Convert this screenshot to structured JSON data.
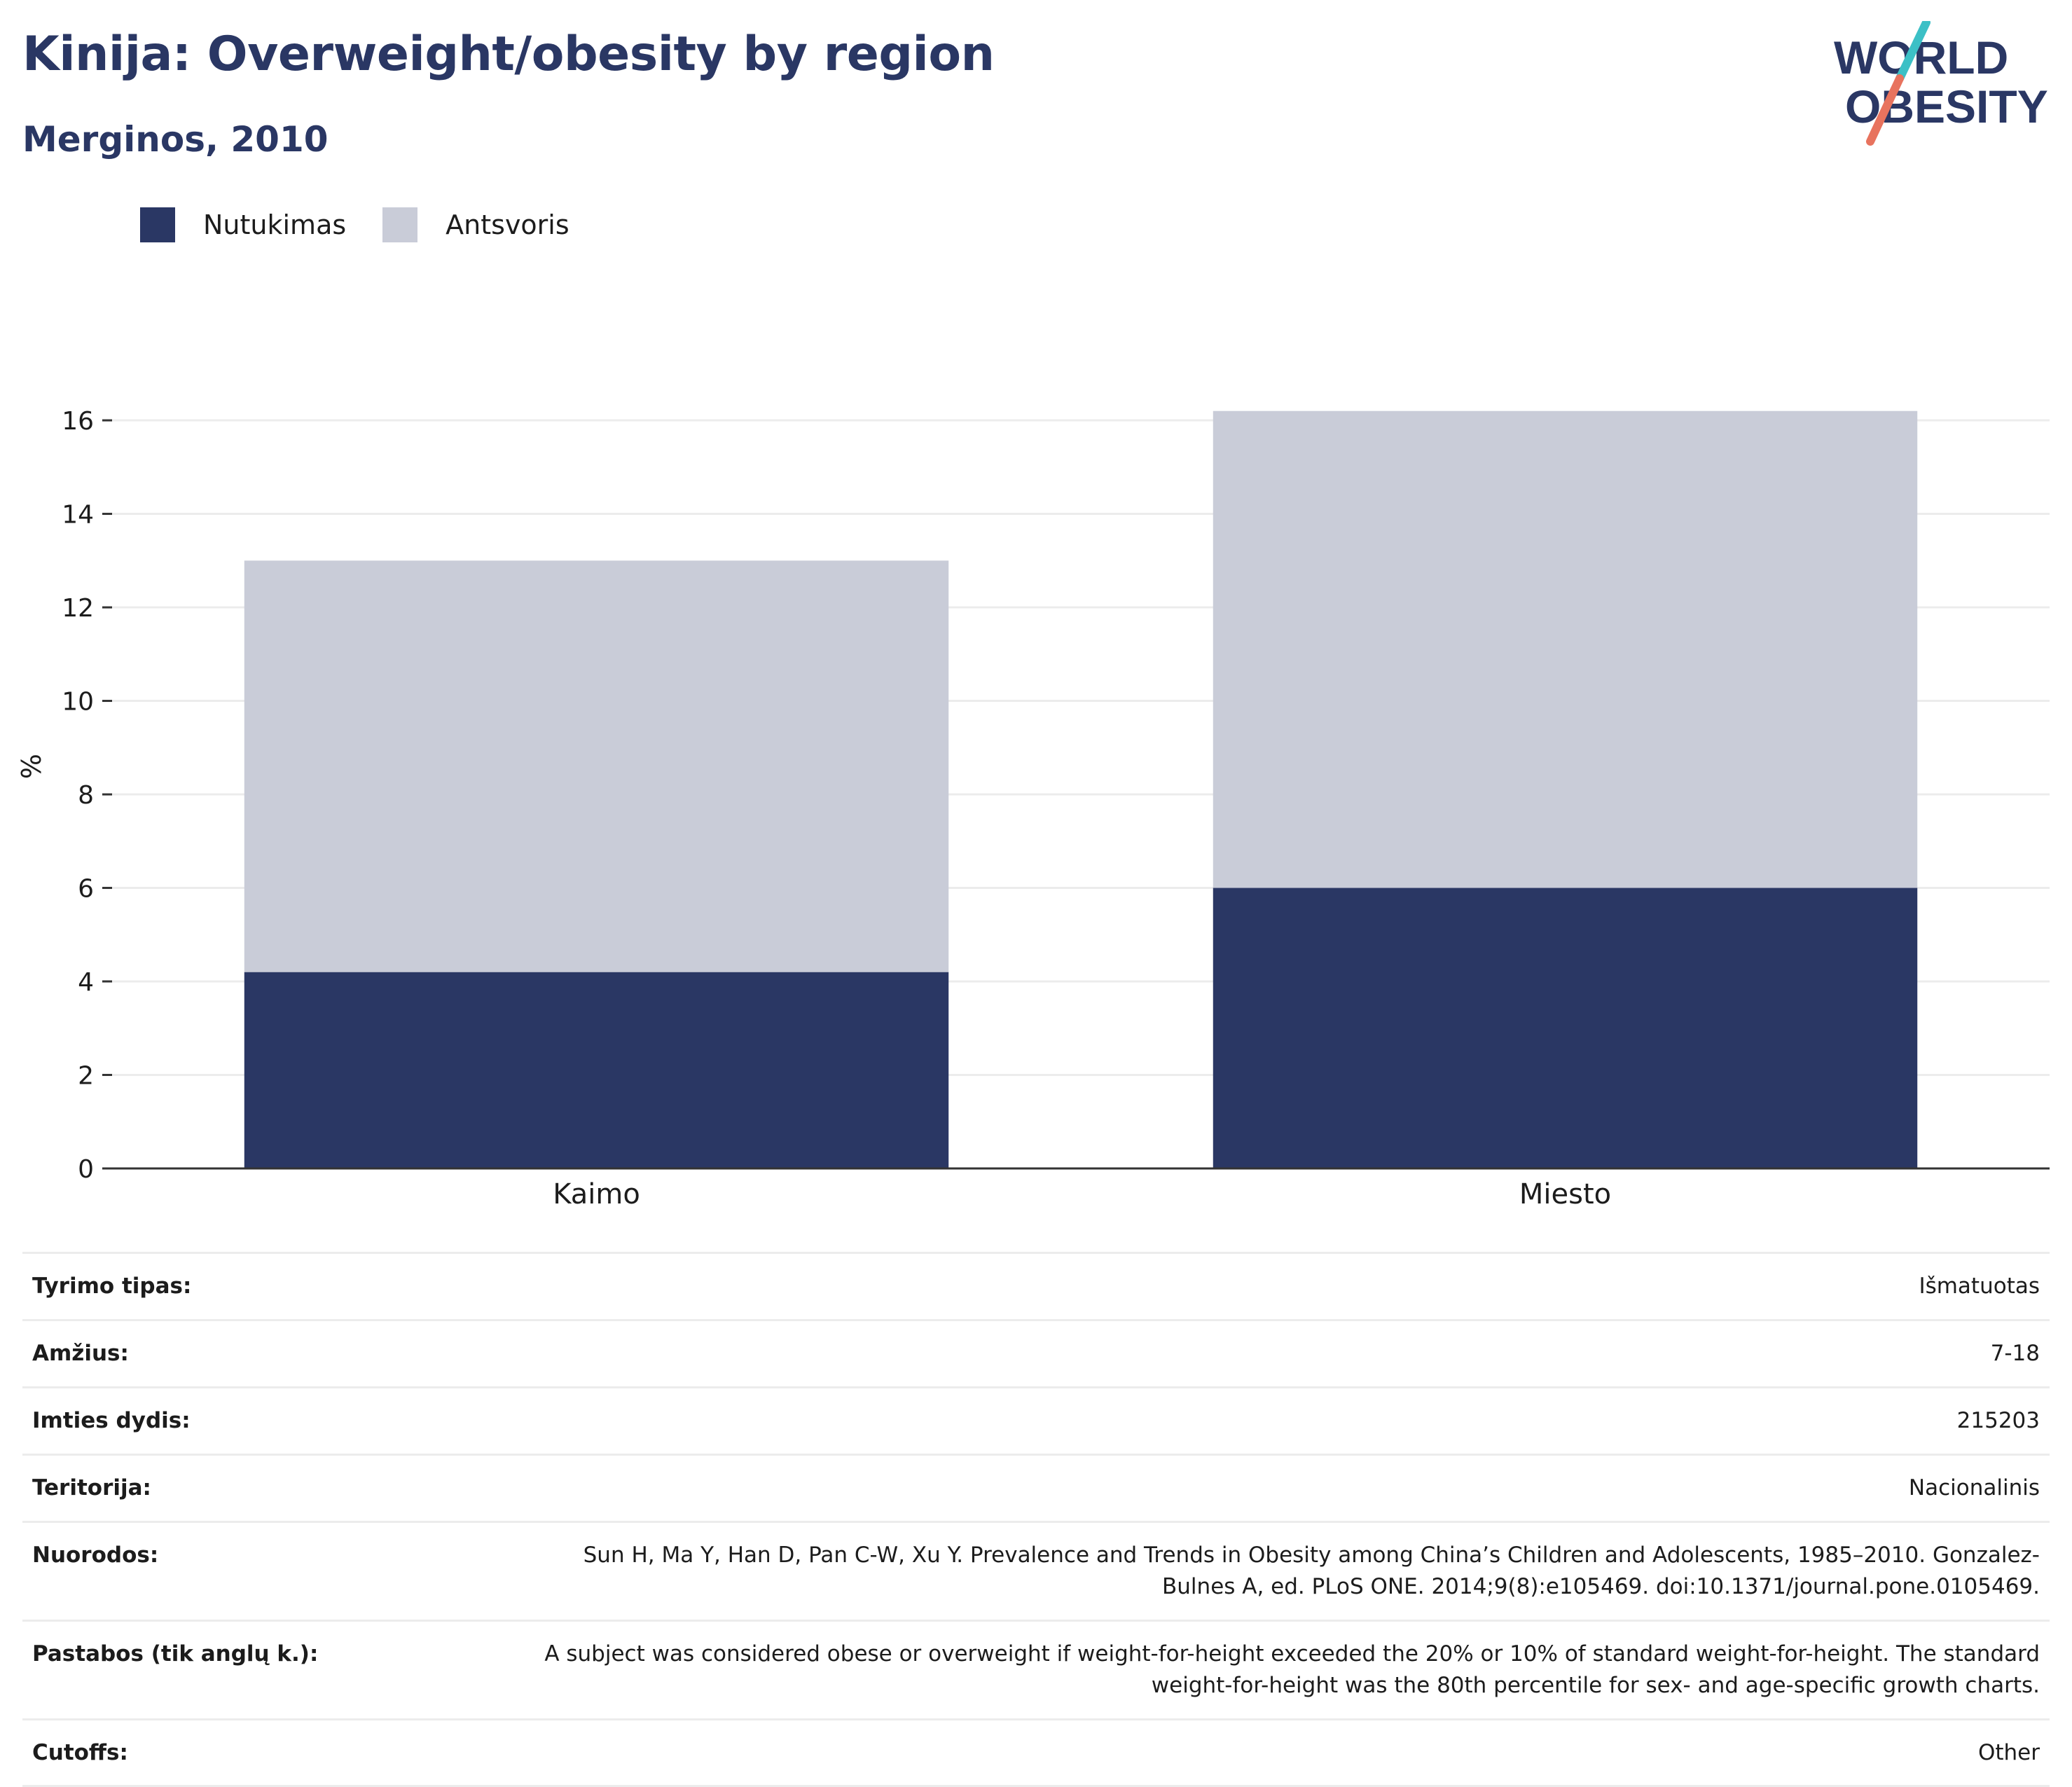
{
  "header": {
    "title": "Kinija: Overweight/obesity by region",
    "subtitle": "Merginos, 2010"
  },
  "logo": {
    "line1": "WORLD",
    "line2": "OBESITY",
    "colors": {
      "text": "#2a3764",
      "slash_top": "#3cc0c6",
      "slash_bottom": "#e8735e"
    }
  },
  "colors": {
    "obesity": "#2a3764",
    "overweight": "#c9ccd8",
    "grid": "#ececec",
    "axis": "#333333"
  },
  "chart_data": {
    "type": "bar",
    "stacked": true,
    "categories": [
      "Kaimo",
      "Miesto"
    ],
    "series": [
      {
        "name": "Nutukimas",
        "values": [
          4.2,
          6.0
        ]
      },
      {
        "name": "Antsvoris",
        "values": [
          8.8,
          10.2
        ]
      }
    ],
    "ylabel": "%",
    "ylim": [
      0,
      16.6
    ],
    "yticks": [
      0,
      2,
      4,
      6,
      8,
      10,
      12,
      14,
      16
    ],
    "grid": true,
    "legend": "top-left"
  },
  "info": [
    {
      "label": "Tyrimo tipas:",
      "value": "Išmatuotas"
    },
    {
      "label": "Amžius:",
      "value": "7-18"
    },
    {
      "label": "Imties dydis:",
      "value": "215203"
    },
    {
      "label": "Teritorija:",
      "value": "Nacionalinis"
    },
    {
      "label": "Nuorodos:",
      "value": "Sun H, Ma Y, Han D, Pan C-W, Xu Y. Prevalence and Trends in Obesity among China’s Children and Adolescents, 1985–2010. Gonzalez-Bulnes A, ed. PLoS ONE. 2014;9(8):e105469. doi:10.1371/journal.pone.0105469."
    },
    {
      "label": "Pastabos (tik anglų k.):",
      "value": "A subject was considered obese or overweight if weight-for-height exceeded the 20% or 10% of standard weight-for-height. The standard weight-for-height was the 80th percentile for sex- and age-specific growth charts."
    },
    {
      "label": "Cutoffs:",
      "value": "Other"
    }
  ]
}
